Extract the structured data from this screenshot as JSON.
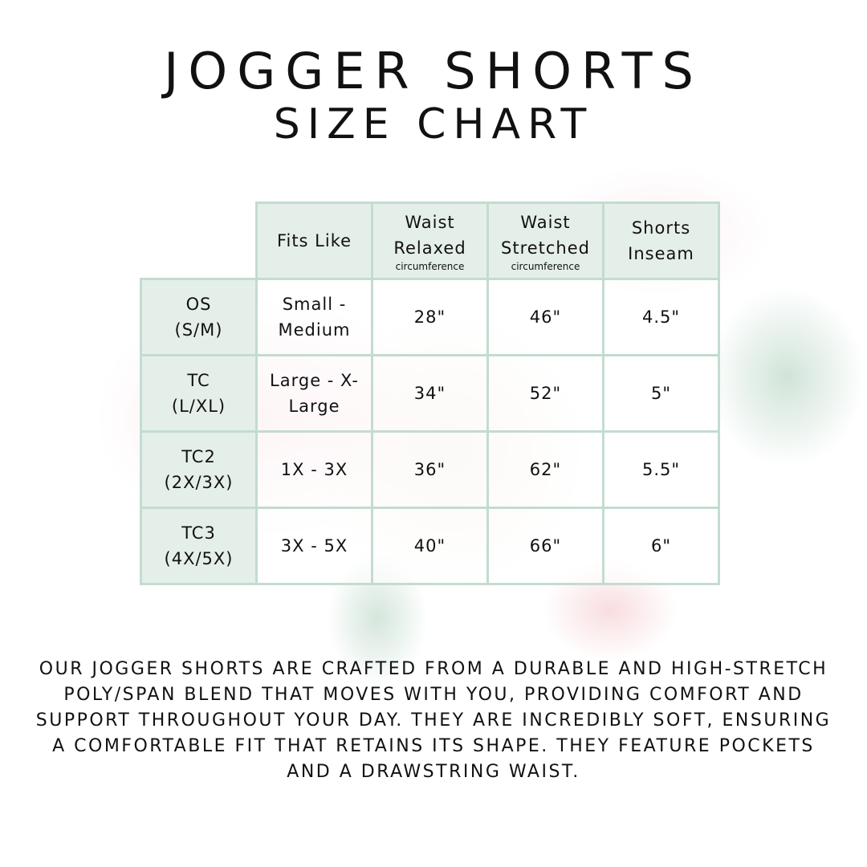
{
  "title": {
    "line1": "Jogger Shorts",
    "line2": "Size Chart"
  },
  "colors": {
    "header_fill": "#e5efe9",
    "border": "#c3dccf"
  },
  "table": {
    "headers": [
      {
        "main": "Fits Like",
        "sub": ""
      },
      {
        "main": "Waist Relaxed",
        "sub": "circumference"
      },
      {
        "main": "Waist Stretched",
        "sub": "circumference"
      },
      {
        "main": "Shorts Inseam",
        "sub": ""
      }
    ],
    "rows": [
      {
        "size": "OS",
        "alt": "(S/M)",
        "fits": "Small - Medium",
        "relaxed": "28\"",
        "stretched": "46\"",
        "inseam": "4.5\""
      },
      {
        "size": "TC",
        "alt": "(L/XL)",
        "fits": "Large - X-Large",
        "relaxed": "34\"",
        "stretched": "52\"",
        "inseam": "5\""
      },
      {
        "size": "TC2",
        "alt": "(2X/3X)",
        "fits": "1X - 3X",
        "relaxed": "36\"",
        "stretched": "62\"",
        "inseam": "5.5\""
      },
      {
        "size": "TC3",
        "alt": "(4X/5X)",
        "fits": "3X - 5X",
        "relaxed": "40\"",
        "stretched": "66\"",
        "inseam": "6\""
      }
    ]
  },
  "description": "Our jogger shorts are crafted from a durable and high-stretch poly/span blend that moves with you, providing comfort and support throughout your day. They are incredibly soft, ensuring a comfortable fit that retains its shape. They feature pockets and a drawstring waist."
}
